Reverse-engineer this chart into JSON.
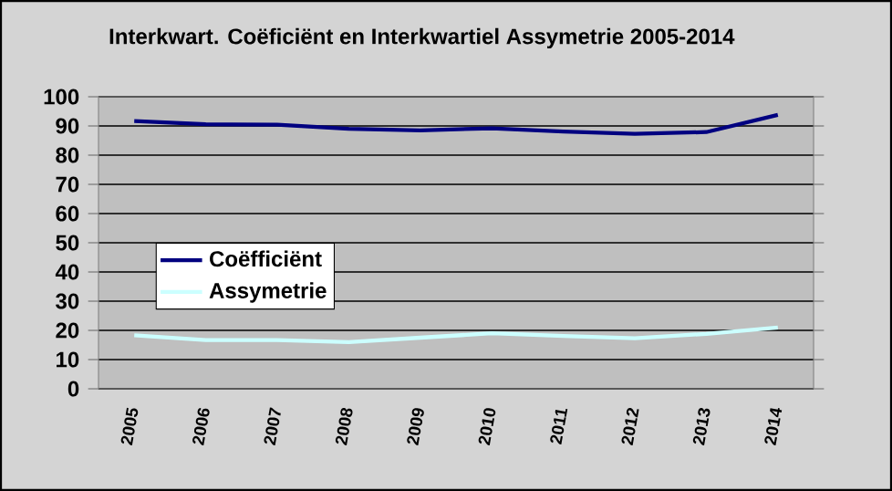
{
  "chart_data": {
    "type": "line",
    "title": "Interkwart. Coëficiënt en Interkwartiel Assymetrie 2005-2014",
    "categories": [
      "2005",
      "2006",
      "2007",
      "2008",
      "2009",
      "2010",
      "2011",
      "2012",
      "2013",
      "2014"
    ],
    "series": [
      {
        "name": "Coëfficiënt",
        "color": "#000080",
        "values": [
          91.7,
          90.6,
          90.4,
          89,
          88.5,
          89.2,
          88.1,
          87.3,
          87.9,
          93.8
        ]
      },
      {
        "name": "Assymetrie",
        "color": "#ccffff",
        "values": [
          18.3,
          16.7,
          16.7,
          16,
          17.5,
          19,
          18.1,
          17.3,
          18.8,
          21
        ]
      }
    ],
    "ylim": [
      0,
      100
    ],
    "yticks": [
      0,
      10,
      20,
      30,
      40,
      50,
      60,
      70,
      80,
      90,
      100
    ],
    "grid": "y",
    "legend": "left",
    "marker": "none",
    "line_style": "solid"
  }
}
